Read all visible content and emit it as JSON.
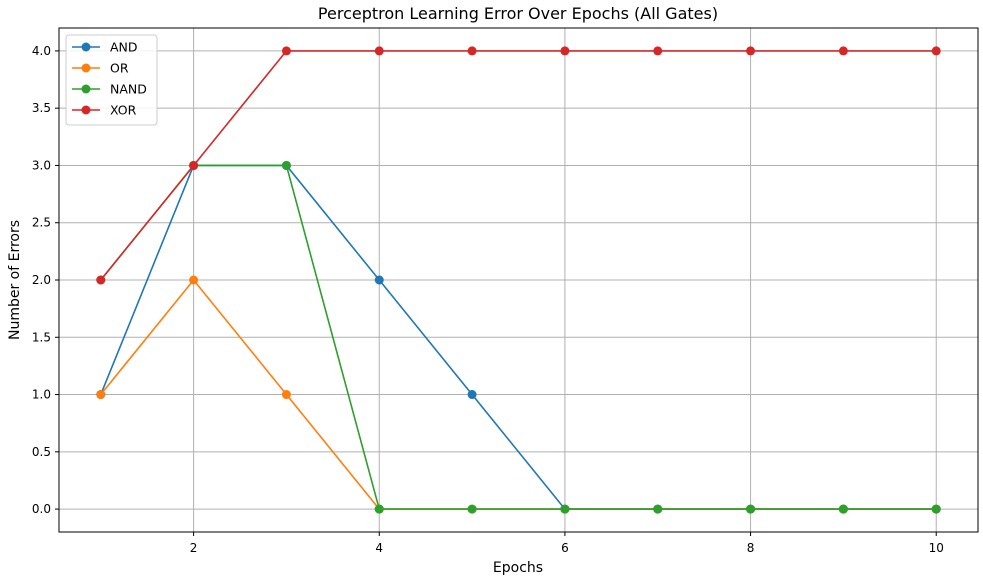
{
  "chart_data": {
    "type": "line",
    "title": "Perceptron Learning Error Over Epochs (All Gates)",
    "xlabel": "Epochs",
    "ylabel": "Number of Errors",
    "x": [
      1,
      2,
      3,
      4,
      5,
      6,
      7,
      8,
      9,
      10
    ],
    "xlim": [
      0.55,
      10.45
    ],
    "ylim": [
      -0.2,
      4.2
    ],
    "xticks": [
      2,
      4,
      6,
      8,
      10
    ],
    "xtick_labels": [
      "2",
      "4",
      "6",
      "8",
      "10"
    ],
    "yticks": [
      0,
      0.5,
      1,
      1.5,
      2,
      2.5,
      3,
      3.5,
      4
    ],
    "ytick_labels": [
      "0.0",
      "0.5",
      "1.0",
      "1.5",
      "2.0",
      "2.5",
      "3.0",
      "3.5",
      "4.0"
    ],
    "grid": true,
    "legend_position": "top-left",
    "series": [
      {
        "name": "AND",
        "color": "#1f77b4",
        "values": [
          1,
          3,
          3,
          2,
          1,
          0,
          0,
          0,
          0,
          0
        ]
      },
      {
        "name": "OR",
        "color": "#ff7f0e",
        "values": [
          1,
          2,
          1,
          0,
          0,
          0,
          0,
          0,
          0,
          0
        ]
      },
      {
        "name": "NAND",
        "color": "#2ca02c",
        "values": [
          2,
          3,
          3,
          0,
          0,
          0,
          0,
          0,
          0,
          0
        ]
      },
      {
        "name": "XOR",
        "color": "#d62728",
        "values": [
          2,
          3,
          4,
          4,
          4,
          4,
          4,
          4,
          4,
          4
        ]
      }
    ]
  }
}
